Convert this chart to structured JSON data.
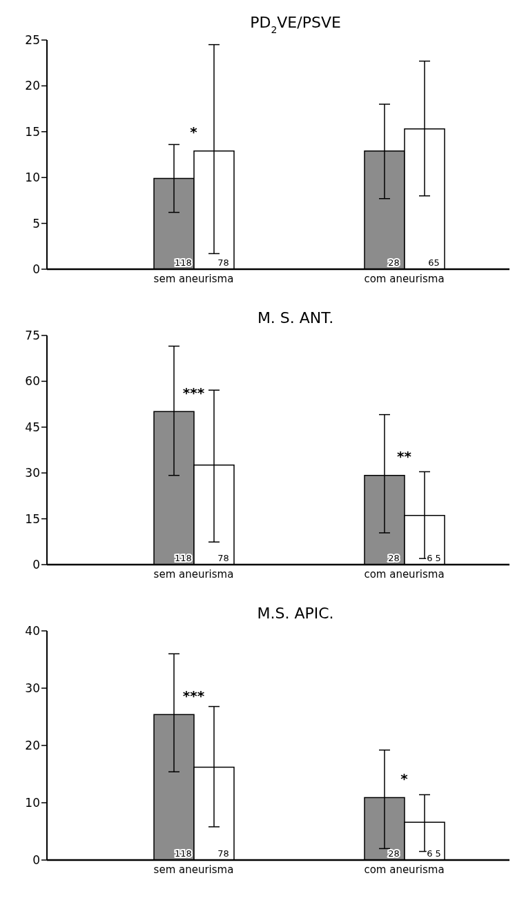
{
  "chart_data": [
    {
      "type": "bar",
      "title": "PD$_{2}$VE/PSVE",
      "categories": [
        "sem aneurisma",
        "com aneurisma"
      ],
      "series": [
        {
          "color": "#8c8c8c",
          "values": [
            9.9,
            12.9
          ],
          "errors": [
            [
              6.2,
              13.6
            ],
            [
              7.7,
              18.0
            ]
          ]
        },
        {
          "color": "#ffffff",
          "values": [
            12.9,
            15.3
          ],
          "errors": [
            [
              1.7,
              24.5
            ],
            [
              8.0,
              22.7
            ]
          ]
        }
      ],
      "ylim": [
        0,
        25
      ],
      "yticks": [
        0,
        5,
        10,
        15,
        20,
        25
      ],
      "grid": false,
      "legend": false,
      "annotations": [
        "*",
        {
          "text": "118",
          "x": "sem aneurisma",
          "y": 0
        },
        {
          "text": "78",
          "x": "sem aneurisma",
          "y": 0
        },
        {
          "text": "28",
          "x": "com aneurisma",
          "y": 0
        },
        {
          "text": "65",
          "x": "com aneurisma",
          "y": 0
        }
      ]
    },
    {
      "type": "bar",
      "title": "M. S. ANT.",
      "categories": [
        "sem aneurisma",
        "com aneurisma"
      ],
      "series": [
        {
          "color": "#8c8c8c",
          "values": [
            50.1,
            29.2
          ],
          "errors": [
            [
              29.2,
              71.5
            ],
            [
              10.4,
              49.1
            ]
          ]
        },
        {
          "color": "#ffffff",
          "values": [
            32.6,
            16.1
          ],
          "errors": [
            [
              7.4,
              57.1
            ],
            [
              2,
              30.4
            ]
          ]
        }
      ],
      "ylim": [
        0,
        75
      ],
      "yticks": [
        0,
        15,
        30,
        45,
        60,
        75
      ],
      "grid": false,
      "legend": false,
      "annotations": [
        "***",
        "**",
        {
          "text": "118",
          "x": "sem aneurisma",
          "y": 0
        },
        {
          "text": "78",
          "x": "sem aneurisma",
          "y": 0
        },
        {
          "text": "28",
          "x": "com aneurisma",
          "y": 0
        },
        {
          "text": "6 5",
          "x": "com aneurisma",
          "y": 0
        }
      ]
    },
    {
      "type": "bar",
      "title": "M.S. APIC.",
      "categories": [
        "sem aneurisma",
        "com aneurisma"
      ],
      "series": [
        {
          "color": "#8c8c8c",
          "values": [
            25.4,
            10.9
          ],
          "errors": [
            [
              15.4,
              36.0
            ],
            [
              2,
              19.2
            ]
          ]
        },
        {
          "color": "#ffffff",
          "values": [
            16.2,
            6.6
          ],
          "errors": [
            [
              5.8,
              26.8
            ],
            [
              1.5,
              11.4
            ]
          ]
        }
      ],
      "ylim": [
        0,
        40
      ],
      "yticks": [
        0,
        10,
        20,
        30,
        40
      ],
      "grid": false,
      "legend": false,
      "annotations": [
        "***",
        "*",
        {
          "text": "118",
          "x": "sem aneurisma",
          "y": 0
        },
        {
          "text": "78",
          "x": "sem aneurisma",
          "y": 0
        },
        {
          "text": "28",
          "x": "com aneurisma",
          "y": 0
        },
        {
          "text": "6 5",
          "x": "com aneurisma",
          "y": 0
        }
      ]
    }
  ]
}
